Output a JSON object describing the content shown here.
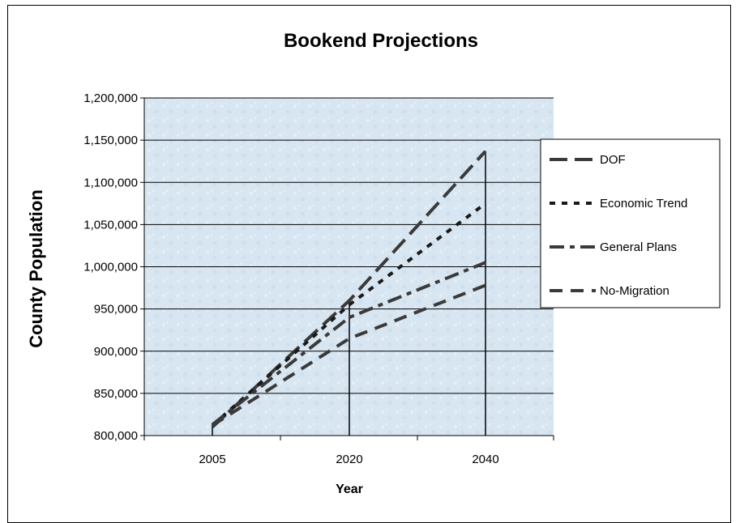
{
  "chart_data": {
    "type": "line",
    "title": "Bookend Projections",
    "xlabel": "Year",
    "ylabel": "County Population",
    "categories": [
      "2005",
      "2020",
      "2040"
    ],
    "ylim": [
      800000,
      1200000
    ],
    "yticks": [
      "800,000",
      "850,000",
      "900,000",
      "950,000",
      "1,000,000",
      "1,050,000",
      "1,100,000",
      "1,150,000",
      "1,200,000"
    ],
    "grid": true,
    "legend_position": "right",
    "series": [
      {
        "name": "DOF",
        "values": [
          810000,
          960000,
          1137000
        ],
        "dash": "long-dash",
        "color": "#3a3a3a"
      },
      {
        "name": "Economic Trend",
        "values": [
          812000,
          955000,
          1075000
        ],
        "dash": "dotted",
        "color": "#1a1a1a"
      },
      {
        "name": "General Plans",
        "values": [
          813000,
          940000,
          1005000
        ],
        "dash": "dash-dot",
        "color": "#3a3a3a"
      },
      {
        "name": "No-Migration",
        "values": [
          812000,
          915000,
          978000
        ],
        "dash": "dash",
        "color": "#3a3a3a"
      }
    ]
  },
  "colors": {
    "plot_background": "#dbe8f3",
    "gridline": "#000000",
    "series_line": "#3a3a3a"
  }
}
